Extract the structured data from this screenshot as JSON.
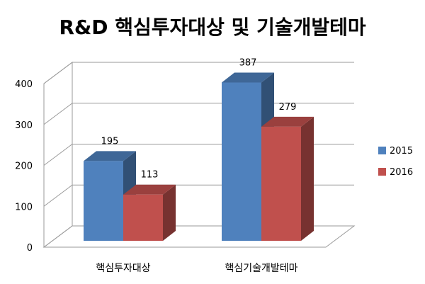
{
  "chart_data": {
    "type": "bar",
    "title": "R&D 핵심투자대상 및 기술개발테마",
    "categories": [
      "핵심투자대상",
      "핵심기술개발테마"
    ],
    "series": [
      {
        "name": "2015",
        "values": [
          195,
          387
        ],
        "color": "#4F81BD"
      },
      {
        "name": "2016",
        "values": [
          113,
          279
        ],
        "color": "#C0504D"
      }
    ],
    "yticks": [
      "0",
      "100",
      "200",
      "300",
      "400"
    ],
    "ylim": [
      0,
      400
    ],
    "style": "3d-clustered-column",
    "grid": true,
    "legend_position": "right",
    "data_labels": true
  }
}
